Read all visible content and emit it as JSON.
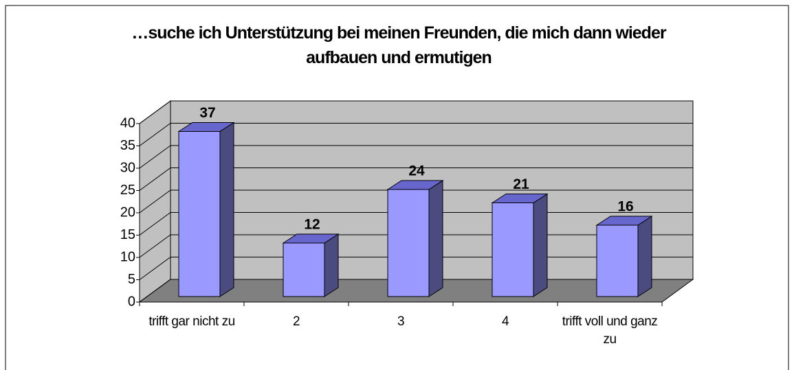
{
  "chart_data": {
    "type": "bar",
    "title": "…suche ich Unterstützung bei meinen Freunden, die mich dann wieder aufbauen und ermutigen",
    "categories": [
      "trifft gar nicht zu",
      "2",
      "3",
      "4",
      "trifft voll und ganz zu"
    ],
    "values": [
      37,
      12,
      24,
      21,
      16
    ],
    "color": "#9999ff",
    "ylim": [
      0,
      40
    ],
    "yticks": [
      0,
      5,
      10,
      15,
      20,
      25,
      30,
      35,
      40
    ],
    "grid": true
  }
}
